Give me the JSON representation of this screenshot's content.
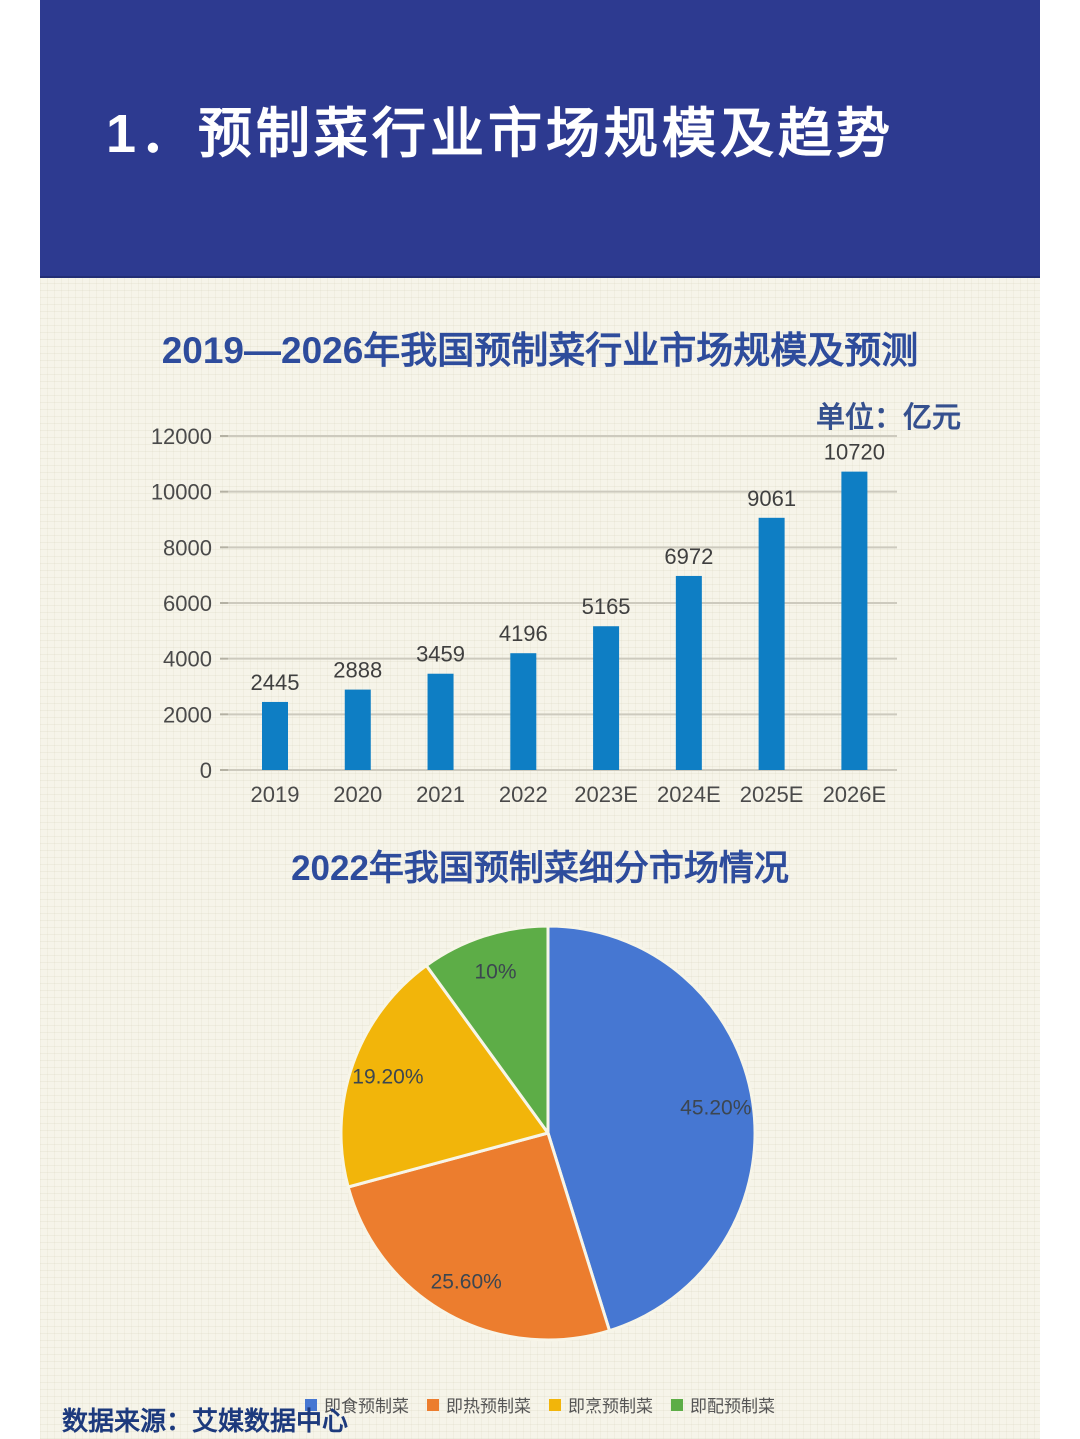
{
  "header": {
    "title": "1．预制菜行业市场规模及趋势",
    "background_color": "#2d3a90",
    "text_color": "#ffffff"
  },
  "chart_data": [
    {
      "type": "bar",
      "title": "2019—2026年我国预制菜行业市场规模及预测",
      "unit_label": "单位：亿元",
      "categories": [
        "2019",
        "2020",
        "2021",
        "2022",
        "2023E",
        "2024E",
        "2025E",
        "2026E"
      ],
      "values": [
        2445,
        2888,
        3459,
        4196,
        5165,
        6972,
        9061,
        10720
      ],
      "ylim": [
        0,
        12000
      ],
      "yticks": [
        0,
        2000,
        4000,
        6000,
        8000,
        10000,
        12000
      ],
      "bar_color": "#0e7ec4",
      "grid": true,
      "legend_position": "none"
    },
    {
      "type": "pie",
      "title": "2022年我国预制菜细分市场情况",
      "labels": [
        "即食预制菜",
        "即热预制菜",
        "即烹预制菜",
        "即配预制菜"
      ],
      "values": [
        45.2,
        25.6,
        19.2,
        10
      ],
      "display_labels": [
        "45.20%",
        "25.60%",
        "19.20%",
        "10%"
      ],
      "colors": [
        "#4677d2",
        "#ec7d2e",
        "#f2b50a",
        "#5dad47"
      ],
      "start_angle_deg": 0,
      "direction": "clockwise",
      "legend_position": "bottom"
    }
  ],
  "source": {
    "text": "数据来源：艾媒数据中心"
  },
  "colors": {
    "axis_text": "#4a4a4a",
    "value_text": "#3f3f3f",
    "gridline": "#cdcabe",
    "tick": "#b4b1a3",
    "slice_border": "#f7f5e8",
    "pie_label_text": "#3c4650",
    "legend_text": "#555555"
  }
}
